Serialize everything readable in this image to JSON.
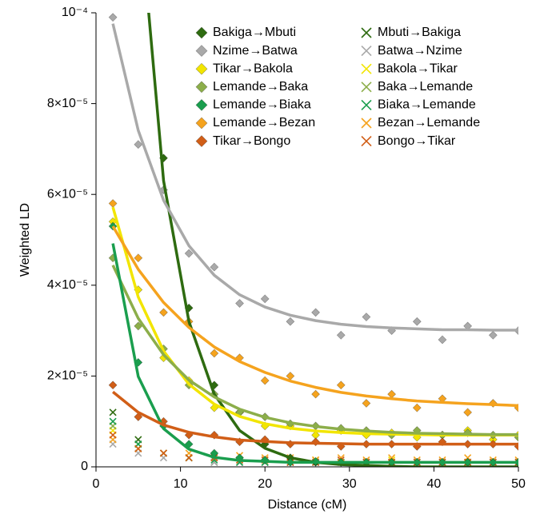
{
  "chart_data": {
    "type": "scatter",
    "x_label": "Distance (cM)",
    "y_label": "Weighted LD",
    "xlim": [
      0,
      50
    ],
    "xticks": [
      0,
      10,
      20,
      30,
      40,
      50
    ],
    "ylim": [
      0,
      0.0001
    ],
    "yticks": [
      0,
      {
        "value": 2e-05,
        "label": "2×10⁻⁵"
      },
      {
        "value": 4e-05,
        "label": "4×10⁻⁵"
      },
      {
        "value": 6e-05,
        "label": "6×10⁻⁵"
      },
      {
        "value": 8e-05,
        "label": "8×10⁻⁵"
      },
      {
        "value": 0.0001,
        "label": "10⁻⁴"
      }
    ],
    "legend": "upper right",
    "x": [
      2,
      5,
      8,
      11,
      14,
      17,
      20,
      23,
      26,
      29,
      32,
      35,
      38,
      41,
      44,
      47,
      50
    ],
    "series": [
      {
        "name": "Bakiga→Mbuti",
        "color": "#2e6b10",
        "marker": "diamond",
        "values": [
          null,
          null,
          6.8e-05,
          3.5e-05,
          1.8e-05,
          1.2e-05,
          5e-06,
          2e-06,
          1e-06,
          1e-06,
          1e-06,
          1e-06,
          1e-06,
          1e-06,
          1e-06,
          1e-06,
          1e-06
        ],
        "fit": [
          0.00025,
          0.000126,
          6.3e-05,
          3.2e-05,
          1.6e-05,
          8e-06,
          4.1e-06,
          2e-06,
          1e-06,
          5e-07,
          3e-07,
          1e-07,
          0,
          0,
          0,
          0,
          0
        ]
      },
      {
        "name": "Nzime→Batwa",
        "color": "#a9a9a9",
        "marker": "diamond",
        "values": [
          9.9e-05,
          7.1e-05,
          6.1e-05,
          4.7e-05,
          4.4e-05,
          3.6e-05,
          3.7e-05,
          3.2e-05,
          3.4e-05,
          2.9e-05,
          3.3e-05,
          3e-05,
          3.2e-05,
          2.8e-05,
          3.1e-05,
          2.9e-05,
          3e-05
        ],
        "fit": [
          9.76e-05,
          7.41e-05,
          5.87e-05,
          4.87e-05,
          4.22e-05,
          3.79e-05,
          3.52e-05,
          3.34e-05,
          3.22e-05,
          3.14e-05,
          3.09e-05,
          3.06e-05,
          3.04e-05,
          3.02e-05,
          3.02e-05,
          3.01e-05,
          3.01e-05
        ]
      },
      {
        "name": "Tikar→Bakola",
        "color": "#f2e500",
        "marker": "diamond",
        "values": [
          5.4e-05,
          3.9e-05,
          2.4e-05,
          1.9e-05,
          1.3e-05,
          1.2e-05,
          9e-06,
          9e-06,
          7e-06,
          8e-06,
          7e-06,
          7.5e-06,
          6.5e-06,
          7e-06,
          8e-06,
          6e-06,
          7e-06
        ],
        "fit": [
          5.72e-05,
          3.74e-05,
          2.55e-05,
          1.82e-05,
          1.38e-05,
          1.11e-05,
          9.5e-06,
          8.5e-06,
          7.9e-06,
          7.55e-06,
          7.3e-06,
          7.2e-06,
          7.1e-06,
          7e-06,
          7e-06,
          7e-06,
          7e-06
        ]
      },
      {
        "name": "Lemande→Baka",
        "color": "#8cae4a",
        "marker": "diamond",
        "values": [
          4.6e-05,
          3.1e-05,
          2.6e-05,
          1.8e-05,
          1.6e-05,
          1.2e-05,
          1.1e-05,
          9.5e-06,
          9e-06,
          8.5e-06,
          8e-06,
          7e-06,
          8e-06,
          7e-06,
          7.5e-06,
          7e-06,
          6.5e-06
        ],
        "fit": [
          4.44e-05,
          3.27e-05,
          2.47e-05,
          1.91e-05,
          1.54e-05,
          1.27e-05,
          1.09e-05,
          9.7e-06,
          8.9e-06,
          8.3e-06,
          7.9e-06,
          7.6e-06,
          7.4e-06,
          7.3e-06,
          7.2e-06,
          7.1e-06,
          7.1e-06
        ]
      },
      {
        "name": "Lemande→Biaka",
        "color": "#1a9e4e",
        "marker": "diamond",
        "values": [
          5.3e-05,
          2.3e-05,
          9e-06,
          5e-06,
          3e-06,
          2e-06,
          1.5e-06,
          1e-06,
          1.2e-06,
          1e-06,
          1e-06,
          1e-06,
          1e-06,
          1e-06,
          1e-06,
          1e-06,
          1e-06
        ],
        "fit": [
          4.92e-05,
          1.99e-05,
          8.4e-06,
          3.9e-06,
          2.1e-06,
          1.4e-06,
          1.2e-06,
          1e-06,
          1e-06,
          1e-06,
          1e-06,
          1e-06,
          1e-06,
          1e-06,
          1e-06,
          1e-06,
          1e-06
        ]
      },
      {
        "name": "Lemande→Bezan",
        "color": "#f5a31e",
        "marker": "diamond",
        "values": [
          5.8e-05,
          4.6e-05,
          3.4e-05,
          3.2e-05,
          2.5e-05,
          2.4e-05,
          1.9e-05,
          2e-05,
          1.6e-05,
          1.8e-05,
          1.4e-05,
          1.6e-05,
          1.3e-05,
          1.5e-05,
          1.2e-05,
          1.4e-05,
          1.3e-05
        ],
        "fit": [
          5.3e-05,
          4.35e-05,
          3.62e-05,
          3.07e-05,
          2.64e-05,
          2.32e-05,
          2.08e-05,
          1.89e-05,
          1.75e-05,
          1.64e-05,
          1.56e-05,
          1.5e-05,
          1.45e-05,
          1.42e-05,
          1.39e-05,
          1.37e-05,
          1.35e-05
        ]
      },
      {
        "name": "Tikar→Bongo",
        "color": "#d15e17",
        "marker": "diamond",
        "values": [
          1.8e-05,
          1.1e-05,
          1e-05,
          7e-06,
          7e-06,
          5.5e-06,
          6e-06,
          5e-06,
          5.5e-06,
          4.5e-06,
          5e-06,
          5e-06,
          4.5e-06,
          5.5e-06,
          5e-06,
          5e-06,
          4.5e-06
        ],
        "fit": [
          1.65e-05,
          1.2e-05,
          9.2e-06,
          7.6e-06,
          6.6e-06,
          5.9e-06,
          5.6e-06,
          5.3e-06,
          5.2e-06,
          5.1e-06,
          5e-06,
          5e-06,
          5e-06,
          5e-06,
          5e-06,
          5e-06,
          5e-06
        ]
      },
      {
        "name": "Mbuti→Bakiga",
        "color": "#2e6b10",
        "marker": "cross",
        "values": [
          1.2e-05,
          6e-06,
          3e-06,
          2e-06,
          1e-06,
          1e-06,
          1e-06,
          1e-06,
          1e-06,
          1e-06,
          1e-06,
          1e-06,
          1e-06,
          1e-06,
          1e-06,
          1e-06,
          1e-06
        ]
      },
      {
        "name": "Batwa→Nzime",
        "color": "#a9a9a9",
        "marker": "cross",
        "values": [
          5e-06,
          3e-06,
          2e-06,
          2e-06,
          1e-06,
          1e-06,
          1e-06,
          1e-06,
          1e-06,
          1e-06,
          1e-06,
          1e-06,
          1e-06,
          1e-06,
          1e-06,
          1e-06,
          1e-06
        ]
      },
      {
        "name": "Bakola→Tikar",
        "color": "#f2e500",
        "marker": "cross",
        "values": [
          8e-06,
          4e-06,
          3e-06,
          2e-06,
          2e-06,
          1.5e-06,
          1.5e-06,
          1e-06,
          1.5e-06,
          1e-06,
          1e-06,
          1.5e-06,
          1e-06,
          1e-06,
          1e-06,
          1e-06,
          1e-06
        ]
      },
      {
        "name": "Baka→Lemande",
        "color": "#8cae4a",
        "marker": "cross",
        "values": [
          9e-06,
          5e-06,
          3e-06,
          2e-06,
          2e-06,
          1.5e-06,
          1e-06,
          1.5e-06,
          1e-06,
          1e-06,
          1e-06,
          1e-06,
          1e-06,
          1e-06,
          1e-06,
          1e-06,
          1e-06
        ]
      },
      {
        "name": "Biaka→Lemande",
        "color": "#1a9e4e",
        "marker": "cross",
        "values": [
          1e-05,
          5e-06,
          3e-06,
          2e-06,
          1.5e-06,
          1e-06,
          1e-06,
          1e-06,
          1e-06,
          1e-06,
          1e-06,
          1e-06,
          1e-06,
          1e-06,
          1e-06,
          1e-06,
          1e-06
        ]
      },
      {
        "name": "Bezan→Lemande",
        "color": "#f5a31e",
        "marker": "cross",
        "values": [
          6e-06,
          4e-06,
          3e-06,
          3e-06,
          2e-06,
          2.5e-06,
          2e-06,
          2e-06,
          1.5e-06,
          2e-06,
          1.5e-06,
          2e-06,
          1.5e-06,
          1.5e-06,
          2e-06,
          1.5e-06,
          1.5e-06
        ]
      },
      {
        "name": "Bongo→Tikar",
        "color": "#d15e17",
        "marker": "cross",
        "values": [
          7e-06,
          4e-06,
          3e-06,
          2e-06,
          2e-06,
          1.5e-06,
          1.5e-06,
          1e-06,
          1e-06,
          1.5e-06,
          1e-06,
          1e-06,
          1e-06,
          1e-06,
          1e-06,
          1e-06,
          1e-06
        ]
      }
    ]
  }
}
